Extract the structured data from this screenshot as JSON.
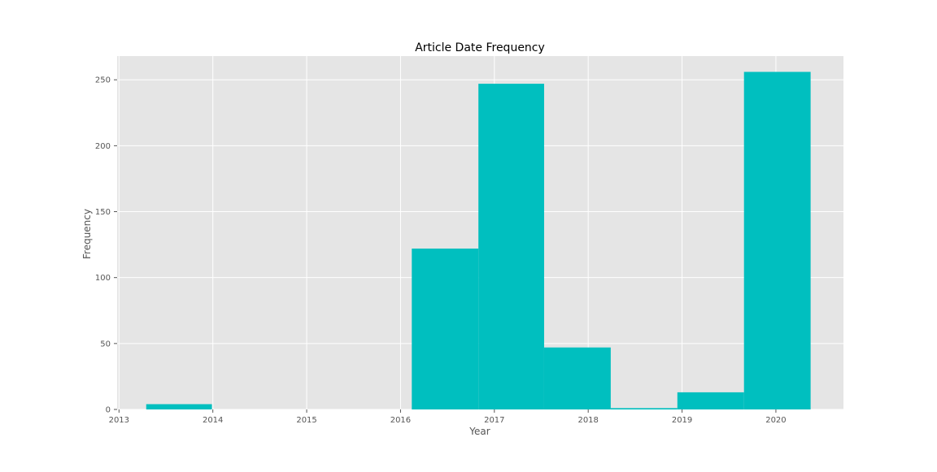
{
  "chart_data": {
    "type": "bar",
    "title": "Article Date Frequency",
    "xlabel": "Year",
    "ylabel": "Frequency",
    "x_ticks": [
      "2013",
      "2014",
      "2015",
      "2016",
      "2017",
      "2018",
      "2019",
      "2020"
    ],
    "y_ticks": [
      "0",
      "50",
      "100",
      "150",
      "200",
      "250"
    ],
    "xlim": [
      2012.98,
      2020.72
    ],
    "ylim": [
      0,
      268
    ],
    "bins": [
      {
        "start": 2013.29,
        "end": 2013.99,
        "value": 4
      },
      {
        "start": 2013.99,
        "end": 2014.7,
        "value": 0
      },
      {
        "start": 2014.7,
        "end": 2015.41,
        "value": 0
      },
      {
        "start": 2015.41,
        "end": 2016.12,
        "value": 0
      },
      {
        "start": 2016.12,
        "end": 2016.83,
        "value": 122
      },
      {
        "start": 2016.83,
        "end": 2017.53,
        "value": 247
      },
      {
        "start": 2017.53,
        "end": 2018.24,
        "value": 47
      },
      {
        "start": 2018.24,
        "end": 2018.95,
        "value": 1
      },
      {
        "start": 2018.95,
        "end": 2019.66,
        "value": 13
      },
      {
        "start": 2019.66,
        "end": 2020.37,
        "value": 256
      }
    ],
    "bar_color": "#00bfbf",
    "background_color": "#e5e5e5",
    "grid": true,
    "legend": false
  }
}
